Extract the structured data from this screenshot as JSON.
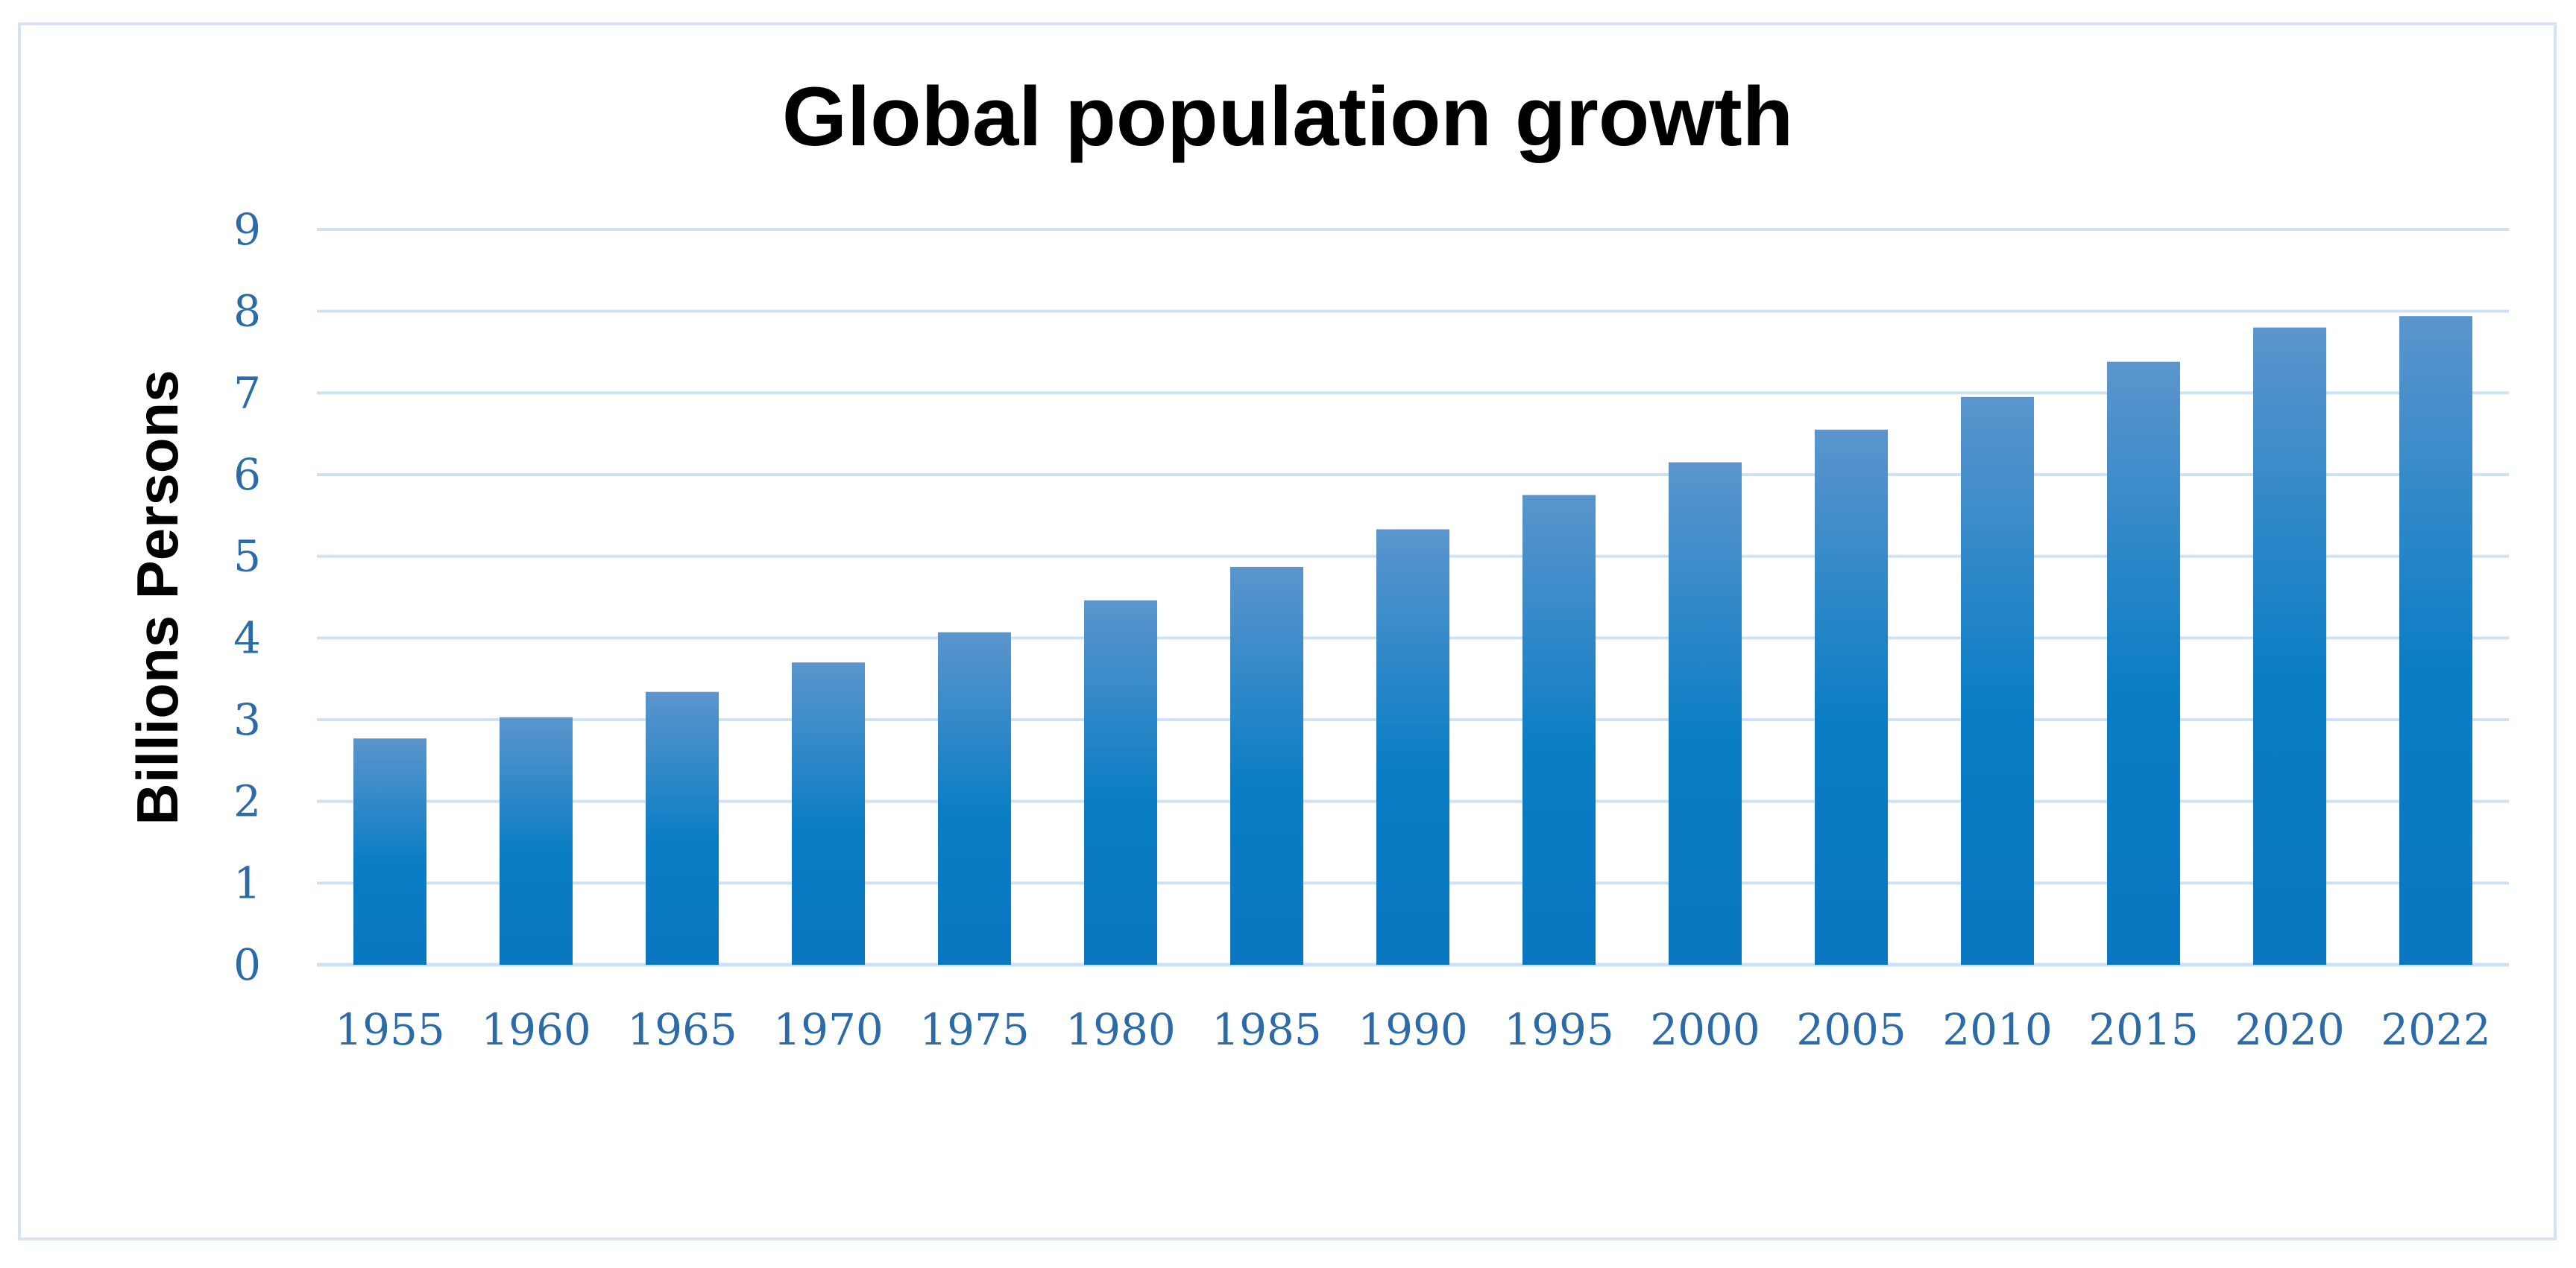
{
  "chart_data": {
    "type": "bar",
    "title": "Global population growth",
    "xlabel": "",
    "ylabel": "Billions Persons",
    "categories": [
      "1955",
      "1960",
      "1965",
      "1970",
      "1975",
      "1980",
      "1985",
      "1990",
      "1995",
      "2000",
      "2005",
      "2010",
      "2015",
      "2020",
      "2022"
    ],
    "values": [
      2.77,
      3.03,
      3.34,
      3.7,
      4.07,
      4.46,
      4.87,
      5.33,
      5.75,
      6.15,
      6.55,
      6.95,
      7.38,
      7.8,
      7.94
    ],
    "ylim": [
      0,
      9
    ],
    "yticks": [
      "0",
      "1",
      "2",
      "3",
      "4",
      "5",
      "6",
      "7",
      "8",
      "9"
    ],
    "grid": true,
    "legend": "none",
    "colors": {
      "bar_top": "#5b95cd",
      "bar_bottom": "#0a77c0",
      "tick_text": "#2b6ca8",
      "grid": "#cfe2f3",
      "border": "#d5e3f3"
    }
  }
}
